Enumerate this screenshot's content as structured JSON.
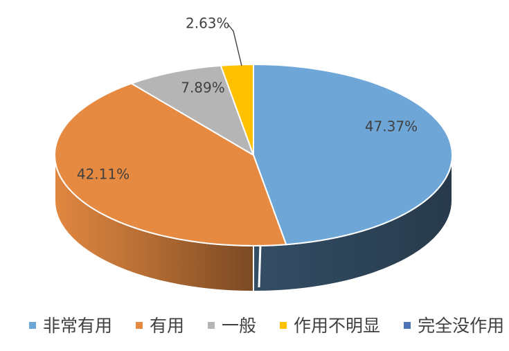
{
  "chart_data": {
    "type": "pie",
    "title": "",
    "slices": [
      {
        "label": "非常有用",
        "value": 47.37,
        "display": "47.37%",
        "color": "#6ea7d7"
      },
      {
        "label": "有用",
        "value": 42.11,
        "display": "42.11%",
        "color": "#e68a42"
      },
      {
        "label": "一般",
        "value": 7.89,
        "display": "7.89%",
        "color": "#b5b5b5"
      },
      {
        "label": "作用不明显",
        "value": 2.63,
        "display": "2.63%",
        "color": "#ffc000"
      },
      {
        "label": "完全没作用",
        "value": 0.0,
        "display": "",
        "color": "#4a73b8"
      }
    ],
    "legend": [
      {
        "label": "非常有用",
        "color": "#6ea7d7"
      },
      {
        "label": "有用",
        "color": "#e68a42"
      },
      {
        "label": "一般",
        "color": "#b5b5b5"
      },
      {
        "label": "作用不明显",
        "color": "#ffc000"
      },
      {
        "label": "完全没作用",
        "color": "#4a73b8"
      }
    ],
    "legend_position": "bottom",
    "style": "3d"
  }
}
